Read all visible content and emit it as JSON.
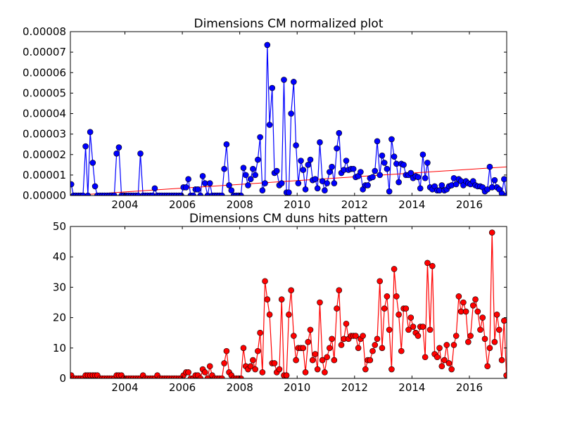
{
  "chart_data": [
    {
      "type": "line",
      "title": "Dimensions CM normalized plot",
      "color": "#0000ff",
      "xlim": [
        2002.1,
        2017.3
      ],
      "xticks": [
        2004,
        2006,
        2008,
        2010,
        2012,
        2014,
        2016
      ],
      "ylim": [
        0,
        8e-05
      ],
      "yticks": [
        {
          "value": 0,
          "label": "0.00000"
        },
        {
          "value": 1e-05,
          "label": "0.00001"
        },
        {
          "value": 2e-05,
          "label": "0.00002"
        },
        {
          "value": 3e-05,
          "label": "0.00003"
        },
        {
          "value": 4e-05,
          "label": "0.00004"
        },
        {
          "value": 5e-05,
          "label": "0.00005"
        },
        {
          "value": 6e-05,
          "label": "0.00006"
        },
        {
          "value": 7e-05,
          "label": "0.00007"
        },
        {
          "value": 8e-05,
          "label": "0.00008"
        }
      ],
      "x": [
        2002.13,
        2002.21,
        2002.29,
        2002.38,
        2002.46,
        2002.54,
        2002.63,
        2002.71,
        2002.79,
        2002.88,
        2002.96,
        2003.04,
        2003.13,
        2003.21,
        2003.29,
        2003.38,
        2003.46,
        2003.54,
        2003.63,
        2003.71,
        2003.79,
        2003.88,
        2003.96,
        2004.04,
        2004.13,
        2004.21,
        2004.29,
        2004.38,
        2004.46,
        2004.54,
        2004.63,
        2004.71,
        2004.79,
        2004.88,
        2004.96,
        2005.04,
        2005.13,
        2005.21,
        2005.29,
        2005.38,
        2005.46,
        2005.54,
        2005.63,
        2005.71,
        2005.79,
        2005.88,
        2005.96,
        2006.04,
        2006.13,
        2006.21,
        2006.29,
        2006.38,
        2006.46,
        2006.54,
        2006.63,
        2006.71,
        2006.79,
        2006.88,
        2006.96,
        2007.04,
        2007.13,
        2007.21,
        2007.29,
        2007.38,
        2007.46,
        2007.54,
        2007.63,
        2007.71,
        2007.79,
        2007.88,
        2007.96,
        2008.04,
        2008.13,
        2008.21,
        2008.29,
        2008.38,
        2008.46,
        2008.54,
        2008.63,
        2008.71,
        2008.79,
        2008.88,
        2008.96,
        2009.04,
        2009.13,
        2009.21,
        2009.29,
        2009.38,
        2009.46,
        2009.54,
        2009.63,
        2009.71,
        2009.79,
        2009.88,
        2009.96,
        2010.04,
        2010.13,
        2010.21,
        2010.29,
        2010.38,
        2010.46,
        2010.54,
        2010.63,
        2010.71,
        2010.79,
        2010.88,
        2010.96,
        2011.04,
        2011.13,
        2011.21,
        2011.29,
        2011.38,
        2011.46,
        2011.54,
        2011.63,
        2011.71,
        2011.79,
        2011.88,
        2011.96,
        2012.04,
        2012.13,
        2012.21,
        2012.29,
        2012.38,
        2012.46,
        2012.54,
        2012.63,
        2012.71,
        2012.79,
        2012.88,
        2012.96,
        2013.04,
        2013.13,
        2013.21,
        2013.29,
        2013.38,
        2013.46,
        2013.54,
        2013.63,
        2013.71,
        2013.79,
        2013.88,
        2013.96,
        2014.04,
        2014.13,
        2014.21,
        2014.29,
        2014.38,
        2014.46,
        2014.54,
        2014.63,
        2014.71,
        2014.79,
        2014.88,
        2014.96,
        2015.04,
        2015.13,
        2015.21,
        2015.29,
        2015.38,
        2015.46,
        2015.54,
        2015.63,
        2015.71,
        2015.79,
        2015.88,
        2015.96,
        2016.04,
        2016.13,
        2016.21,
        2016.29,
        2016.38,
        2016.46,
        2016.54,
        2016.63,
        2016.71,
        2016.79,
        2016.88,
        2016.96,
        2017.04,
        2017.13,
        2017.21,
        2017.29
      ],
      "values": [
        5.5e-06,
        0,
        0,
        0,
        0,
        0,
        2.4e-05,
        0,
        3.1e-05,
        1.6e-05,
        4.5e-06,
        0,
        0,
        0,
        0,
        0,
        0,
        0,
        0,
        2.05e-05,
        2.35e-05,
        0,
        0,
        0,
        0,
        0,
        0,
        0,
        0,
        2.05e-05,
        0,
        0,
        0,
        0,
        0,
        3.5e-06,
        0,
        0,
        0,
        0,
        0,
        0,
        0,
        0,
        0,
        0,
        0,
        4e-06,
        4e-06,
        8e-06,
        0,
        0,
        3e-06,
        3e-06,
        0,
        9.5e-06,
        6e-06,
        0,
        6e-06,
        0,
        0,
        0,
        0,
        0,
        1.3e-05,
        2.5e-05,
        5e-06,
        2.5e-06,
        0,
        0,
        0,
        0,
        1.35e-05,
        1e-05,
        5e-06,
        8e-06,
        1.3e-05,
        1e-05,
        1.75e-05,
        2.85e-05,
        2.5e-06,
        6e-06,
        7.35e-05,
        3.45e-05,
        5.25e-05,
        1.1e-05,
        1.2e-05,
        5e-06,
        6e-06,
        5.65e-05,
        1.5e-06,
        1.5e-06,
        4e-05,
        5.55e-05,
        2.45e-05,
        6e-06,
        1.7e-05,
        1.25e-05,
        3e-06,
        1.5e-05,
        1.75e-05,
        7.5e-06,
        8e-06,
        3.5e-06,
        2.6e-05,
        7e-06,
        2.5e-06,
        6e-06,
        1.15e-05,
        1.4e-05,
        6e-06,
        2.3e-05,
        3.05e-05,
        1.1e-05,
        1.25e-05,
        1.7e-05,
        1.25e-05,
        1.3e-05,
        1.3e-05,
        9e-06,
        9.5e-06,
        1.15e-05,
        3e-06,
        5e-06,
        5e-06,
        8.5e-06,
        9e-06,
        1.2e-05,
        2.65e-05,
        1e-05,
        1.95e-05,
        1.6e-05,
        1.3e-05,
        2e-06,
        2.75e-05,
        1.9e-05,
        1.55e-05,
        6.5e-06,
        1.55e-05,
        1.5e-05,
        1e-05,
        1e-05,
        1.1e-05,
        8.5e-06,
        9.5e-06,
        9e-06,
        3.5e-06,
        2e-05,
        8.5e-06,
        1.6e-05,
        4e-06,
        3e-06,
        4.5e-06,
        2.5e-06,
        2.5e-06,
        5e-06,
        2.5e-06,
        3e-06,
        4.5e-06,
        5e-06,
        8.5e-06,
        5.5e-06,
        8e-06,
        7e-06,
        5e-06,
        7e-06,
        6e-06,
        5.5e-06,
        7e-06,
        5e-06,
        4.5e-06,
        4.5e-06,
        4e-06,
        2e-06,
        3e-06,
        1.4e-05,
        4e-06,
        7.5e-06,
        4e-06,
        3e-06,
        1e-06,
        8e-06,
        0
      ],
      "trend": {
        "x": [
          2002.1,
          2017.3
        ],
        "values": [
          0,
          1.4e-05
        ],
        "color": "#ff0000"
      }
    },
    {
      "type": "line",
      "title": "Dimensions CM duns hits pattern",
      "color": "#ff0000",
      "xlim": [
        2002.1,
        2017.3
      ],
      "xticks": [
        2004,
        2006,
        2008,
        2010,
        2012,
        2014,
        2016
      ],
      "ylim": [
        0,
        50
      ],
      "yticks": [
        0,
        10,
        20,
        30,
        40,
        50
      ],
      "x": [
        2002.13,
        2002.21,
        2002.29,
        2002.38,
        2002.46,
        2002.54,
        2002.63,
        2002.71,
        2002.79,
        2002.88,
        2002.96,
        2003.04,
        2003.13,
        2003.21,
        2003.29,
        2003.38,
        2003.46,
        2003.54,
        2003.63,
        2003.71,
        2003.79,
        2003.88,
        2003.96,
        2004.04,
        2004.13,
        2004.21,
        2004.29,
        2004.38,
        2004.46,
        2004.54,
        2004.63,
        2004.71,
        2004.79,
        2004.88,
        2004.96,
        2005.04,
        2005.13,
        2005.21,
        2005.29,
        2005.38,
        2005.46,
        2005.54,
        2005.63,
        2005.71,
        2005.79,
        2005.88,
        2005.96,
        2006.04,
        2006.13,
        2006.21,
        2006.29,
        2006.38,
        2006.46,
        2006.54,
        2006.63,
        2006.71,
        2006.79,
        2006.88,
        2006.96,
        2007.04,
        2007.13,
        2007.21,
        2007.29,
        2007.38,
        2007.46,
        2007.54,
        2007.63,
        2007.71,
        2007.79,
        2007.88,
        2007.96,
        2008.04,
        2008.13,
        2008.21,
        2008.29,
        2008.38,
        2008.46,
        2008.54,
        2008.63,
        2008.71,
        2008.79,
        2008.88,
        2008.96,
        2009.04,
        2009.13,
        2009.21,
        2009.29,
        2009.38,
        2009.46,
        2009.54,
        2009.63,
        2009.71,
        2009.79,
        2009.88,
        2009.96,
        2010.04,
        2010.13,
        2010.21,
        2010.29,
        2010.38,
        2010.46,
        2010.54,
        2010.63,
        2010.71,
        2010.79,
        2010.88,
        2010.96,
        2011.04,
        2011.13,
        2011.21,
        2011.29,
        2011.38,
        2011.46,
        2011.54,
        2011.63,
        2011.71,
        2011.79,
        2011.88,
        2011.96,
        2012.04,
        2012.13,
        2012.21,
        2012.29,
        2012.38,
        2012.46,
        2012.54,
        2012.63,
        2012.71,
        2012.79,
        2012.88,
        2012.96,
        2013.04,
        2013.13,
        2013.21,
        2013.29,
        2013.38,
        2013.46,
        2013.54,
        2013.63,
        2013.71,
        2013.79,
        2013.88,
        2013.96,
        2014.04,
        2014.13,
        2014.21,
        2014.29,
        2014.38,
        2014.46,
        2014.54,
        2014.63,
        2014.71,
        2014.79,
        2014.88,
        2014.96,
        2015.04,
        2015.13,
        2015.21,
        2015.29,
        2015.38,
        2015.46,
        2015.54,
        2015.63,
        2015.71,
        2015.79,
        2015.88,
        2015.96,
        2016.04,
        2016.13,
        2016.21,
        2016.29,
        2016.38,
        2016.46,
        2016.54,
        2016.63,
        2016.71,
        2016.79,
        2016.88,
        2016.96,
        2017.04,
        2017.13,
        2017.21,
        2017.29
      ],
      "values": [
        1,
        0,
        0,
        0,
        0,
        0,
        1,
        1,
        1,
        1,
        1,
        1,
        0,
        0,
        0,
        0,
        0,
        0,
        0,
        1,
        1,
        1,
        0,
        0,
        0,
        0,
        0,
        0,
        0,
        0,
        1,
        0,
        0,
        0,
        0,
        0,
        1,
        0,
        0,
        0,
        0,
        0,
        0,
        0,
        0,
        0,
        0,
        1,
        2,
        2,
        0,
        0,
        1,
        1,
        0,
        3,
        2,
        0,
        4,
        1,
        0,
        0,
        0,
        0,
        5,
        9,
        2,
        1,
        0,
        0,
        0,
        0,
        10,
        4,
        3,
        4,
        6,
        3,
        9,
        15,
        2,
        32,
        26,
        21,
        5,
        5,
        2,
        3,
        26,
        1,
        1,
        21,
        29,
        14,
        6,
        10,
        10,
        10,
        2,
        12,
        16,
        6,
        8,
        3,
        25,
        6,
        2,
        7,
        10,
        13,
        6,
        23,
        29,
        11,
        13,
        18,
        13,
        14,
        14,
        14,
        10,
        13,
        14,
        3,
        6,
        6,
        9,
        11,
        13,
        32,
        10,
        23,
        27,
        16,
        3,
        36,
        27,
        21,
        9,
        23,
        23,
        16,
        20,
        17,
        15,
        14,
        17,
        17,
        7,
        38,
        16,
        37,
        8,
        7,
        10,
        4,
        6,
        11,
        5,
        3,
        11,
        14,
        27,
        22,
        25,
        22,
        12,
        14,
        24,
        26,
        22,
        16,
        20,
        13,
        4,
        10,
        48,
        12,
        21,
        16,
        6,
        19,
        1
      ]
    }
  ]
}
